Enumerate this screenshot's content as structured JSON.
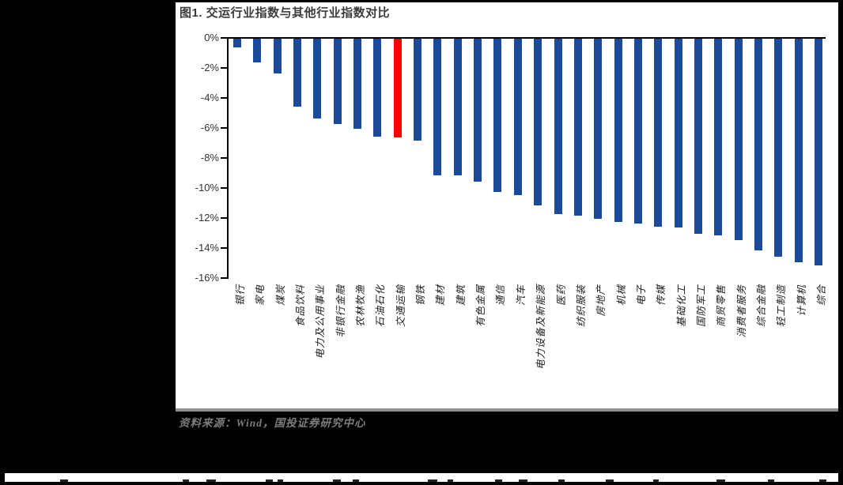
{
  "figure": {
    "title": "图1. 交运行业指数与其他行业指数对比",
    "source": "资料来源：Wind，国投证券研究中心"
  },
  "colors": {
    "bar": "#1B4A9B",
    "highlight": "#FF0000",
    "axis": "#000000",
    "panel_background": "#FFFFFF",
    "page_background": "#000000"
  },
  "chart_data": {
    "type": "bar",
    "title": "图1. 交运行业指数与其他行业指数对比",
    "xlabel": "",
    "ylabel": "",
    "unit": "%",
    "ylim": [
      -16,
      0
    ],
    "ytick_step": 2,
    "ytick_labels": [
      "0%",
      "-2%",
      "-4%",
      "-6%",
      "-8%",
      "-10%",
      "-12%",
      "-14%",
      "-16%"
    ],
    "grid": false,
    "legend": "none",
    "highlight_index": 8,
    "highlight_category": "交通运输",
    "categories": [
      "银行",
      "家电",
      "煤炭",
      "食品饮料",
      "电力及公用事业",
      "非银行金融",
      "农林牧渔",
      "石油石化",
      "交通运输",
      "钢铁",
      "建材",
      "建筑",
      "有色金属",
      "通信",
      "汽车",
      "电力设备及新能源",
      "医药",
      "纺织服装",
      "房地产",
      "机械",
      "电子",
      "传媒",
      "基础化工",
      "国防军工",
      "商贸零售",
      "消费者服务",
      "综合金融",
      "轻工制造",
      "计算机",
      "综合"
    ],
    "values": [
      -0.6,
      -1.6,
      -2.3,
      -4.5,
      -5.3,
      -5.7,
      -6.0,
      -6.5,
      -6.6,
      -6.8,
      -9.1,
      -9.1,
      -9.5,
      -10.2,
      -10.4,
      -11.1,
      -11.7,
      -11.8,
      -12.0,
      -12.2,
      -12.3,
      -12.5,
      -12.6,
      -13.0,
      -13.1,
      -13.4,
      -14.1,
      -14.5,
      -14.9,
      -15.1
    ]
  }
}
